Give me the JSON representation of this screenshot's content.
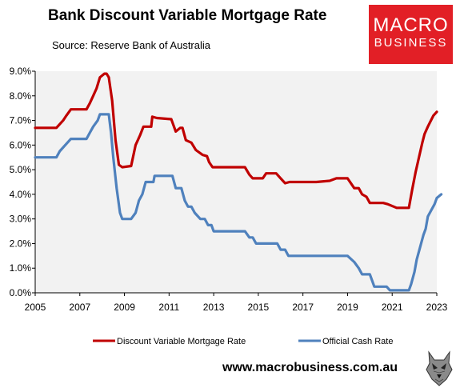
{
  "title": "Bank Discount Variable Mortgage Rate",
  "subtitle": "Source: Reserve Bank of Australia",
  "logo": {
    "line1": "MACRO",
    "line2": "BUSINESS"
  },
  "footer_url": "www.macrobusiness.com.au",
  "colors": {
    "mortgage": "#c00000",
    "cash": "#4f81bd",
    "plot_bg": "#f2f2f2",
    "logo_bg": "#e21f26"
  },
  "chart_data": {
    "type": "line",
    "title": "Bank Discount Variable Mortgage Rate",
    "xlabel": "",
    "ylabel": "",
    "xlim": [
      2005,
      2023
    ],
    "ylim": [
      0,
      9
    ],
    "x_ticks": [
      "2005",
      "2007",
      "2009",
      "2011",
      "2013",
      "2015",
      "2017",
      "2019",
      "2021",
      "2023"
    ],
    "y_ticks": [
      "0.0%",
      "1.0%",
      "2.0%",
      "3.0%",
      "4.0%",
      "5.0%",
      "6.0%",
      "7.0%",
      "8.0%",
      "9.0%"
    ],
    "legend_position": "bottom",
    "series": [
      {
        "name": "Discount Variable Mortgage Rate",
        "color": "#c00000",
        "points": [
          [
            2005.0,
            6.7
          ],
          [
            2005.95,
            6.7
          ],
          [
            2006.1,
            6.85
          ],
          [
            2006.25,
            7.0
          ],
          [
            2006.4,
            7.2
          ],
          [
            2006.6,
            7.45
          ],
          [
            2007.3,
            7.45
          ],
          [
            2007.45,
            7.7
          ],
          [
            2007.6,
            8.0
          ],
          [
            2007.75,
            8.3
          ],
          [
            2007.9,
            8.75
          ],
          [
            2008.1,
            8.9
          ],
          [
            2008.2,
            8.9
          ],
          [
            2008.3,
            8.75
          ],
          [
            2008.45,
            7.8
          ],
          [
            2008.6,
            6.2
          ],
          [
            2008.75,
            5.2
          ],
          [
            2008.9,
            5.1
          ],
          [
            2009.3,
            5.15
          ],
          [
            2009.5,
            6.0
          ],
          [
            2009.7,
            6.4
          ],
          [
            2009.85,
            6.75
          ],
          [
            2010.2,
            6.75
          ],
          [
            2010.25,
            7.15
          ],
          [
            2010.45,
            7.1
          ],
          [
            2011.1,
            7.05
          ],
          [
            2011.3,
            6.55
          ],
          [
            2011.5,
            6.7
          ],
          [
            2011.6,
            6.7
          ],
          [
            2011.75,
            6.2
          ],
          [
            2012.0,
            6.1
          ],
          [
            2012.2,
            5.8
          ],
          [
            2012.5,
            5.6
          ],
          [
            2012.7,
            5.55
          ],
          [
            2012.8,
            5.3
          ],
          [
            2012.95,
            5.1
          ],
          [
            2014.4,
            5.1
          ],
          [
            2014.6,
            4.8
          ],
          [
            2014.75,
            4.65
          ],
          [
            2015.2,
            4.65
          ],
          [
            2015.35,
            4.85
          ],
          [
            2015.8,
            4.85
          ],
          [
            2016.0,
            4.65
          ],
          [
            2016.2,
            4.45
          ],
          [
            2016.4,
            4.5
          ],
          [
            2017.2,
            4.5
          ],
          [
            2017.45,
            4.5
          ],
          [
            2017.6,
            4.5
          ],
          [
            2018.2,
            4.55
          ],
          [
            2018.5,
            4.65
          ],
          [
            2019.0,
            4.65
          ],
          [
            2019.3,
            4.25
          ],
          [
            2019.5,
            4.25
          ],
          [
            2019.65,
            4.0
          ],
          [
            2019.85,
            3.9
          ],
          [
            2020.0,
            3.65
          ],
          [
            2020.6,
            3.65
          ],
          [
            2020.8,
            3.6
          ],
          [
            2021.2,
            3.45
          ],
          [
            2021.75,
            3.45
          ],
          [
            2021.9,
            4.2
          ],
          [
            2022.05,
            4.9
          ],
          [
            2022.2,
            5.5
          ],
          [
            2022.35,
            6.1
          ],
          [
            2022.45,
            6.45
          ],
          [
            2022.6,
            6.75
          ],
          [
            2022.85,
            7.2
          ],
          [
            2023.0,
            7.35
          ]
        ]
      },
      {
        "name": "Official Cash Rate",
        "color": "#4f81bd",
        "points": [
          [
            2005.0,
            5.5
          ],
          [
            2005.95,
            5.5
          ],
          [
            2006.1,
            5.75
          ],
          [
            2006.35,
            6.0
          ],
          [
            2006.6,
            6.25
          ],
          [
            2007.3,
            6.25
          ],
          [
            2007.45,
            6.5
          ],
          [
            2007.6,
            6.75
          ],
          [
            2007.8,
            7.0
          ],
          [
            2007.9,
            7.25
          ],
          [
            2008.3,
            7.25
          ],
          [
            2008.4,
            6.5
          ],
          [
            2008.5,
            5.5
          ],
          [
            2008.65,
            4.25
          ],
          [
            2008.8,
            3.25
          ],
          [
            2008.9,
            3.0
          ],
          [
            2009.1,
            3.0
          ],
          [
            2009.3,
            3.0
          ],
          [
            2009.5,
            3.25
          ],
          [
            2009.65,
            3.75
          ],
          [
            2009.8,
            4.0
          ],
          [
            2009.95,
            4.5
          ],
          [
            2010.3,
            4.5
          ],
          [
            2010.35,
            4.75
          ],
          [
            2011.15,
            4.75
          ],
          [
            2011.3,
            4.25
          ],
          [
            2011.55,
            4.25
          ],
          [
            2011.7,
            3.75
          ],
          [
            2011.85,
            3.5
          ],
          [
            2012.0,
            3.5
          ],
          [
            2012.15,
            3.25
          ],
          [
            2012.4,
            3.0
          ],
          [
            2012.6,
            3.0
          ],
          [
            2012.75,
            2.75
          ],
          [
            2012.9,
            2.75
          ],
          [
            2013.0,
            2.5
          ],
          [
            2014.4,
            2.5
          ],
          [
            2014.6,
            2.25
          ],
          [
            2014.75,
            2.25
          ],
          [
            2014.9,
            2.0
          ],
          [
            2015.85,
            2.0
          ],
          [
            2016.0,
            1.75
          ],
          [
            2016.2,
            1.75
          ],
          [
            2016.35,
            1.5
          ],
          [
            2019.0,
            1.5
          ],
          [
            2019.3,
            1.25
          ],
          [
            2019.5,
            1.0
          ],
          [
            2019.65,
            0.75
          ],
          [
            2020.0,
            0.75
          ],
          [
            2020.1,
            0.5
          ],
          [
            2020.2,
            0.25
          ],
          [
            2020.75,
            0.25
          ],
          [
            2020.9,
            0.1
          ],
          [
            2021.75,
            0.1
          ],
          [
            2021.85,
            0.35
          ],
          [
            2022.0,
            0.85
          ],
          [
            2022.1,
            1.35
          ],
          [
            2022.25,
            1.85
          ],
          [
            2022.4,
            2.35
          ],
          [
            2022.5,
            2.6
          ],
          [
            2022.6,
            3.1
          ],
          [
            2022.75,
            3.35
          ],
          [
            2022.9,
            3.6
          ],
          [
            2023.0,
            3.85
          ],
          [
            2023.2,
            4.0
          ]
        ]
      }
    ]
  }
}
